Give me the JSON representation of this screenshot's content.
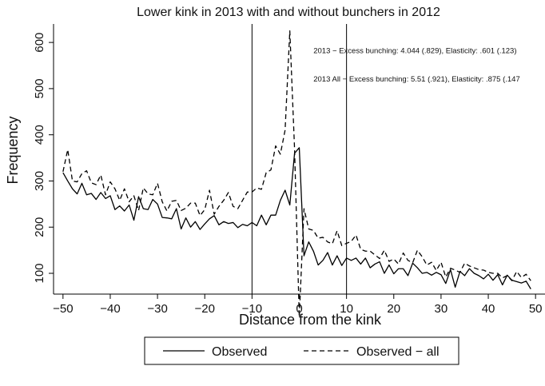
{
  "chart_data": {
    "type": "line",
    "title": "Lower kink in 2013 with and without bunchers in 2012",
    "xlabel": "Distance from the kink",
    "ylabel": "Frequency",
    "xlim": [
      -52,
      52
    ],
    "ylim": [
      55,
      640
    ],
    "xticks": [
      -50,
      -40,
      -30,
      -20,
      -10,
      0,
      10,
      20,
      30,
      40,
      50
    ],
    "yticks": [
      100,
      200,
      300,
      400,
      500,
      600
    ],
    "grid": false,
    "legend_position": "bottom",
    "vlines": [
      -10,
      10
    ],
    "annotations": [
      {
        "text": "2013 − Excess bunching: 4.044 (.829), Elasticity: .601 (.123)",
        "x": 3,
        "y": 577
      },
      {
        "text": "2013 All − Excess bunching: 5.51 (.921), Elasticity: .875 (.147",
        "x": 3,
        "y": 515
      }
    ],
    "x": [
      -50,
      -49,
      -48,
      -47,
      -46,
      -45,
      -44,
      -43,
      -42,
      -41,
      -40,
      -39,
      -38,
      -37,
      -36,
      -35,
      -34,
      -33,
      -32,
      -31,
      -30,
      -29,
      -28,
      -27,
      -26,
      -25,
      -24,
      -23,
      -22,
      -21,
      -20,
      -19,
      -18,
      -17,
      -16,
      -15,
      -14,
      -13,
      -12,
      -11,
      -10,
      -9,
      -8,
      -7,
      -6,
      -5,
      -4,
      -3,
      -2,
      -1,
      0,
      1,
      2,
      3,
      4,
      5,
      6,
      7,
      8,
      9,
      10,
      11,
      12,
      13,
      14,
      15,
      16,
      17,
      18,
      19,
      20,
      21,
      22,
      23,
      24,
      25,
      26,
      27,
      28,
      29,
      30,
      31,
      32,
      33,
      34,
      35,
      36,
      37,
      38,
      39,
      40,
      41,
      42,
      43,
      44,
      45,
      46,
      47,
      48,
      49
    ],
    "series": [
      {
        "name": "Observed",
        "style": "solid",
        "color": "#000000",
        "values": [
          318,
          300,
          283,
          272,
          295,
          270,
          273,
          260,
          275,
          262,
          268,
          238,
          246,
          235,
          248,
          215,
          266,
          240,
          238,
          260,
          250,
          221,
          220,
          218,
          240,
          196,
          220,
          200,
          212,
          195,
          207,
          218,
          225,
          205,
          212,
          208,
          210,
          199,
          206,
          203,
          210,
          203,
          226,
          205,
          226,
          226,
          258,
          280,
          248,
          360,
          372,
          138,
          168,
          148,
          118,
          128,
          145,
          118,
          138,
          117,
          133,
          128,
          133,
          120,
          133,
          112,
          120,
          125,
          100,
          118,
          99,
          110,
          110,
          95,
          122,
          112,
          100,
          102,
          96,
          102,
          97,
          78,
          108,
          70,
          104,
          95,
          110,
          100,
          95,
          88,
          98,
          85,
          97,
          75,
          96,
          85,
          82,
          79,
          83,
          66
        ]
      },
      {
        "name": "Observed − all",
        "style": "dashed",
        "color": "#000000",
        "values": [
          320,
          368,
          300,
          298,
          316,
          322,
          296,
          292,
          313,
          270,
          298,
          283,
          258,
          283,
          255,
          268,
          236,
          285,
          272,
          270,
          295,
          255,
          235,
          256,
          258,
          236,
          241,
          252,
          252,
          225,
          238,
          280,
          228,
          245,
          258,
          275,
          245,
          240,
          258,
          276,
          276,
          285,
          282,
          318,
          324,
          376,
          358,
          410,
          625,
          370,
          5,
          240,
          196,
          193,
          176,
          178,
          168,
          164,
          192,
          160,
          165,
          169,
          183,
          152,
          148,
          148,
          140,
          132,
          150,
          126,
          131,
          120,
          144,
          128,
          123,
          150,
          136,
          118,
          124,
          106,
          124,
          92,
          111,
          107,
          102,
          122,
          116,
          112,
          108,
          107,
          102,
          100,
          100,
          90,
          95,
          84,
          104,
          91,
          98,
          84
        ]
      }
    ]
  }
}
